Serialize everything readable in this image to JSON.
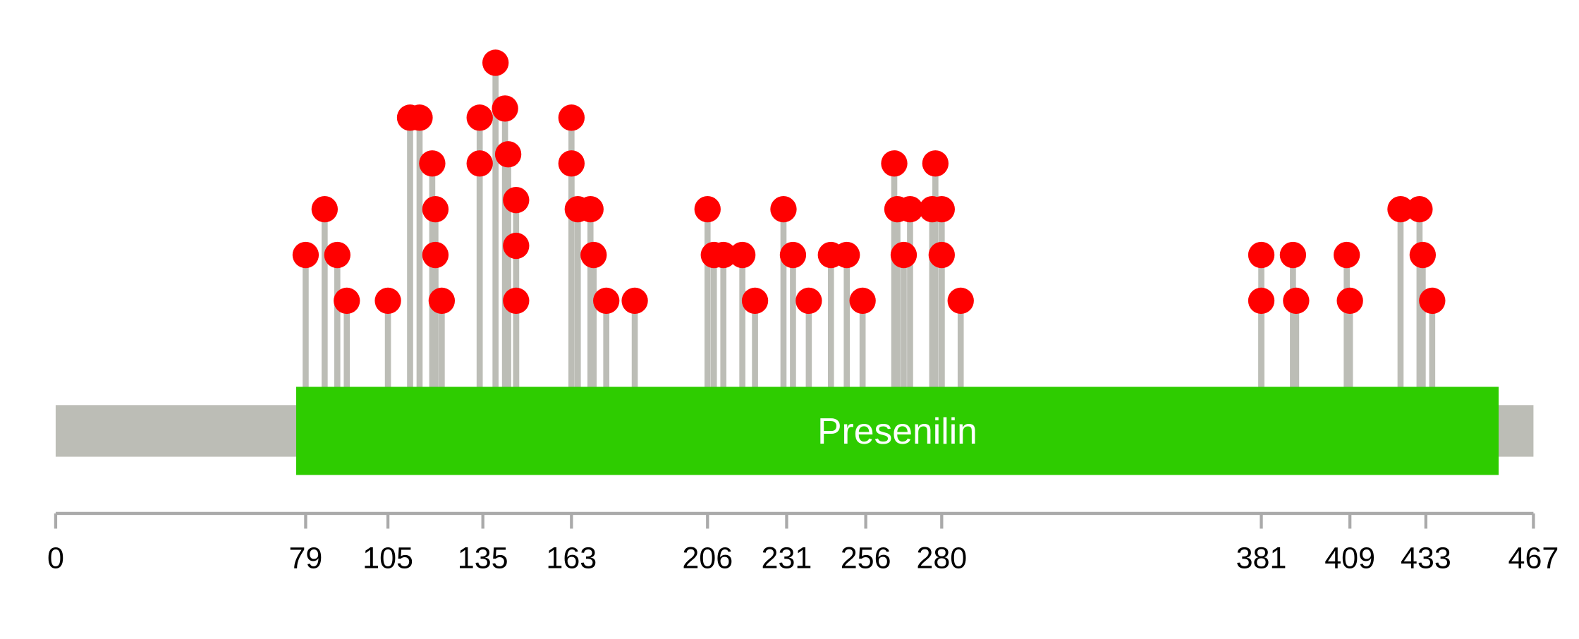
{
  "chart_data": {
    "type": "lollipop",
    "title": "",
    "protein_length": 467,
    "xlim": [
      0,
      467
    ],
    "x_ticks": [
      0,
      79,
      105,
      135,
      163,
      206,
      231,
      256,
      280,
      381,
      409,
      433,
      467
    ],
    "x_tick_labels": [
      "0",
      "79",
      "105",
      "135",
      "163",
      "206",
      "231",
      "256",
      "280",
      "381",
      "409",
      "433",
      "467"
    ],
    "domains": [
      {
        "name": "Presenilin",
        "start": 76,
        "end": 456,
        "color": "#2ecc00"
      }
    ],
    "backbone_color": "#bcbdb6",
    "stick_color": "#bcbdb6",
    "marker_color": "#ff0000",
    "mutations": [
      {
        "pos": 79,
        "count": 2
      },
      {
        "pos": 85,
        "count": 3
      },
      {
        "pos": 89,
        "count": 2
      },
      {
        "pos": 92,
        "count": 1
      },
      {
        "pos": 105,
        "count": 1
      },
      {
        "pos": 112,
        "count": 5
      },
      {
        "pos": 115,
        "count": 5
      },
      {
        "pos": 119,
        "count": 4
      },
      {
        "pos": 120,
        "count": 3
      },
      {
        "pos": 120,
        "count": 2
      },
      {
        "pos": 122,
        "count": 1
      },
      {
        "pos": 134,
        "count": 5
      },
      {
        "pos": 134,
        "count": 4
      },
      {
        "pos": 139,
        "count": 6.2
      },
      {
        "pos": 142,
        "count": 5.2
      },
      {
        "pos": 143,
        "count": 4.2
      },
      {
        "pos": 145.5,
        "count": 3.2
      },
      {
        "pos": 145.5,
        "count": 2.2
      },
      {
        "pos": 145.5,
        "count": 1
      },
      {
        "pos": 163,
        "count": 5
      },
      {
        "pos": 163,
        "count": 4
      },
      {
        "pos": 165,
        "count": 3
      },
      {
        "pos": 169,
        "count": 3
      },
      {
        "pos": 170,
        "count": 2
      },
      {
        "pos": 174,
        "count": 1
      },
      {
        "pos": 183,
        "count": 1
      },
      {
        "pos": 206,
        "count": 3
      },
      {
        "pos": 208,
        "count": 2
      },
      {
        "pos": 211,
        "count": 2
      },
      {
        "pos": 217,
        "count": 2
      },
      {
        "pos": 221,
        "count": 1
      },
      {
        "pos": 230,
        "count": 3
      },
      {
        "pos": 233,
        "count": 2
      },
      {
        "pos": 238,
        "count": 1
      },
      {
        "pos": 245,
        "count": 2
      },
      {
        "pos": 250,
        "count": 2
      },
      {
        "pos": 255,
        "count": 1
      },
      {
        "pos": 265,
        "count": 4
      },
      {
        "pos": 266,
        "count": 3
      },
      {
        "pos": 268,
        "count": 2
      },
      {
        "pos": 270,
        "count": 3
      },
      {
        "pos": 277,
        "count": 3
      },
      {
        "pos": 278,
        "count": 4
      },
      {
        "pos": 280,
        "count": 2
      },
      {
        "pos": 280,
        "count": 3
      },
      {
        "pos": 286,
        "count": 1
      },
      {
        "pos": 381,
        "count": 2
      },
      {
        "pos": 381,
        "count": 1
      },
      {
        "pos": 391,
        "count": 2
      },
      {
        "pos": 392,
        "count": 1
      },
      {
        "pos": 408,
        "count": 2
      },
      {
        "pos": 409,
        "count": 1
      },
      {
        "pos": 425,
        "count": 3
      },
      {
        "pos": 431,
        "count": 3
      },
      {
        "pos": 432,
        "count": 2
      },
      {
        "pos": 435,
        "count": 1
      }
    ]
  }
}
